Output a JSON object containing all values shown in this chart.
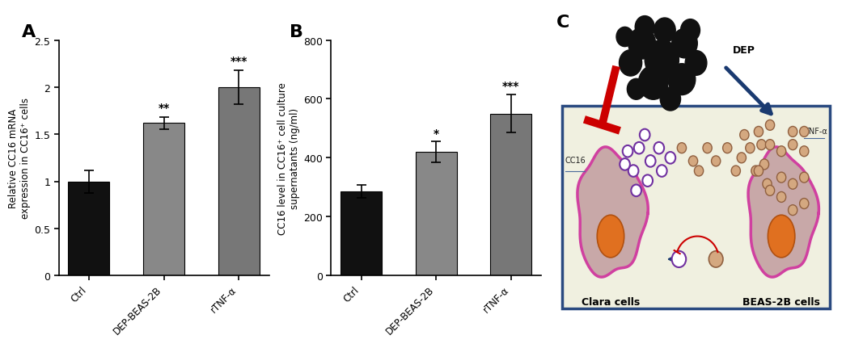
{
  "panel_A": {
    "categories": [
      "Ctrl",
      "DEP-BEAS-2B",
      "rTNF-α"
    ],
    "values": [
      1.0,
      1.62,
      2.0
    ],
    "errors": [
      0.12,
      0.065,
      0.18
    ],
    "bar_colors": [
      "#111111",
      "#888888",
      "#777777"
    ],
    "ylabel": "Relative CC16 mRNA\nexpression in CC16⁺ cells",
    "ylim": [
      0,
      2.5
    ],
    "yticks": [
      0.0,
      0.5,
      1.0,
      1.5,
      2.0,
      2.5
    ],
    "significance": [
      "",
      "**",
      "***"
    ],
    "panel_label": "A"
  },
  "panel_B": {
    "categories": [
      "Ctrl",
      "DEP-BEAS-2B",
      "rTNF-α"
    ],
    "values": [
      285,
      420,
      550
    ],
    "errors": [
      22,
      35,
      65
    ],
    "bar_colors": [
      "#111111",
      "#888888",
      "#777777"
    ],
    "ylabel": "CC16 level in CC16⁺ cell culture\nsupernatants (ng/ml)",
    "ylim": [
      0,
      800
    ],
    "yticks": [
      0,
      200,
      400,
      600,
      800
    ],
    "significance": [
      "",
      "*",
      "***"
    ],
    "panel_label": "B"
  },
  "panel_C": {
    "panel_label": "C",
    "box_bg": "#f0f0e0",
    "box_border": "#2a4a80",
    "dep_label": "DEP",
    "cc16_label": "CC16",
    "tnfa_label": "TNF-α",
    "clara_label": "Clara cells",
    "beas_label": "BEAS-2B cells",
    "cell_fill": "#c8a8a8",
    "cell_outline": "#d040a0",
    "nucleus_fill": "#e07020",
    "nucleus_edge": "#b05010",
    "purple_dot_edge": "#7030a0",
    "brown_dot_fill": "#d4a880",
    "brown_dot_edge": "#906040",
    "red_arrow": "#cc0000",
    "blue_arrow": "#1a3a70"
  },
  "figure_bg": "#ffffff"
}
